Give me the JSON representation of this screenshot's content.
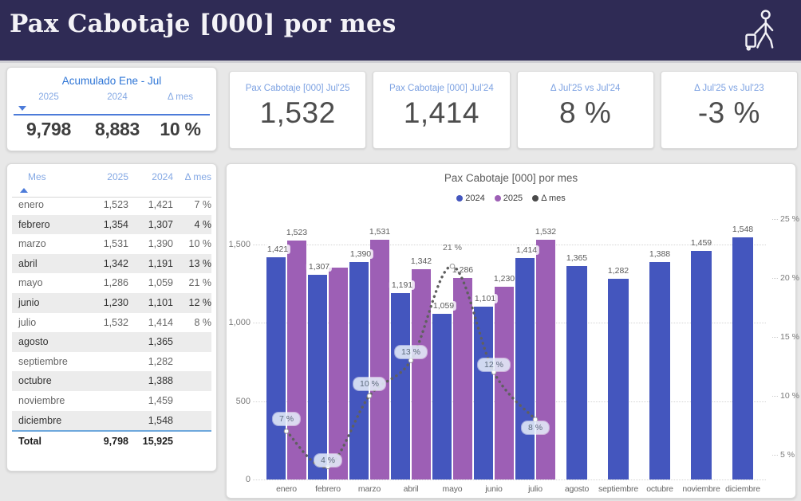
{
  "header": {
    "title": "Pax Cabotaje [000] por mes",
    "icon": "traveler-icon"
  },
  "accumulated": {
    "title": "Acumulado Ene - Jul",
    "columns": [
      "2025",
      "2024",
      "Δ mes"
    ],
    "values": [
      "9,798",
      "8,883",
      "10 %"
    ]
  },
  "kpis": [
    {
      "label": "Pax Cabotaje [000] Jul'25",
      "value": "1,532"
    },
    {
      "label": "Pax Cabotaje [000] Jul'24",
      "value": "1,414"
    },
    {
      "label": "Δ Jul'25 vs Jul'24",
      "value": "8 %"
    },
    {
      "label": "Δ Jul'25 vs Jul'23",
      "value": "-3 %"
    }
  ],
  "table": {
    "columns": [
      "Mes",
      "2025",
      "2024",
      "Δ mes"
    ],
    "rows": [
      [
        "enero",
        "1,523",
        "1,421",
        "7 %"
      ],
      [
        "febrero",
        "1,354",
        "1,307",
        "4 %"
      ],
      [
        "marzo",
        "1,531",
        "1,390",
        "10 %"
      ],
      [
        "abril",
        "1,342",
        "1,191",
        "13 %"
      ],
      [
        "mayo",
        "1,286",
        "1,059",
        "21 %"
      ],
      [
        "junio",
        "1,230",
        "1,101",
        "12 %"
      ],
      [
        "julio",
        "1,532",
        "1,414",
        "8 %"
      ],
      [
        "agosto",
        "",
        "1,365",
        ""
      ],
      [
        "septiembre",
        "",
        "1,282",
        ""
      ],
      [
        "octubre",
        "",
        "1,388",
        ""
      ],
      [
        "noviembre",
        "",
        "1,459",
        ""
      ],
      [
        "diciembre",
        "",
        "1,548",
        ""
      ]
    ],
    "total": [
      "Total",
      "9,798",
      "15,925",
      ""
    ]
  },
  "chart_data": {
    "type": "bar",
    "title": "Pax Cabotaje [000] por mes",
    "categories": [
      "enero",
      "febrero",
      "marzo",
      "abril",
      "mayo",
      "junio",
      "julio",
      "agosto",
      "septiembre",
      "octubre",
      "noviembre",
      "diciembre"
    ],
    "series": [
      {
        "name": "2024",
        "type": "bar",
        "color": "#4456be",
        "values": [
          1421,
          1307,
          1390,
          1191,
          1059,
          1101,
          1414,
          1365,
          1282,
          1388,
          1459,
          1548
        ],
        "labels": [
          "1,421",
          "1,307",
          "1,390",
          "1,191",
          "1,059",
          "1,101",
          "1,414",
          "1,365",
          "1,282",
          "1,388",
          "1,459",
          "1,548"
        ]
      },
      {
        "name": "2025",
        "type": "bar",
        "color": "#9d5fb5",
        "values": [
          1523,
          1354,
          1531,
          1342,
          1286,
          1230,
          1532,
          null,
          null,
          null,
          null,
          null
        ],
        "labels": [
          "1,523",
          "",
          "1,531",
          "1,342",
          "1,286",
          "1,230",
          "1,532",
          "",
          "",
          "",
          "",
          ""
        ]
      },
      {
        "name": "Δ mes",
        "type": "line",
        "color": "#4a4a4a",
        "values": [
          7,
          4,
          10,
          13,
          21,
          12,
          8,
          null,
          null,
          null,
          null,
          null
        ],
        "labels": [
          "7 %",
          "4 %",
          "10 %",
          "13 %",
          "21 %",
          "12 %",
          "8 %",
          "",
          "",
          "",
          "",
          ""
        ]
      }
    ],
    "axes": {
      "y_left": {
        "ticks": [
          "0",
          "500",
          "1,000",
          "1,500"
        ],
        "tick_values": [
          0,
          500,
          1000,
          1500
        ],
        "min": 0,
        "max": 1500
      },
      "y_right": {
        "ticks": [
          "5 %",
          "10 %",
          "15 %",
          "20 %",
          "25 %"
        ],
        "tick_values": [
          5,
          10,
          15,
          20,
          25
        ],
        "min": 5,
        "max": 25
      },
      "grid": true
    },
    "legend_position": "top"
  }
}
